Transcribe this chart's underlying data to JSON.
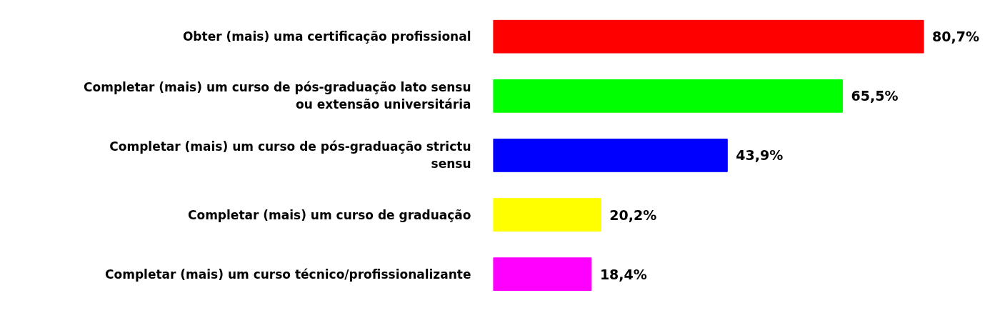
{
  "chart_data": {
    "type": "bar",
    "orientation": "horizontal",
    "categories": [
      "Obter (mais) uma certificação profissional",
      "Completar (mais) um curso de pós-graduação lato sensu ou extensão universitária",
      "Completar (mais) um curso de pós-graduação strictu sensu",
      "Completar (mais) um curso de graduação",
      "Completar (mais) um curso técnico/profissionalizante"
    ],
    "values": [
      80.7,
      65.5,
      43.9,
      20.2,
      18.4
    ],
    "colors": [
      "#ff0000",
      "#00ff00",
      "#0000ff",
      "#ffff00",
      "#ff00ff"
    ],
    "value_labels": [
      "80,7%",
      "65,5%",
      "43,9%",
      "20,2%",
      "18,4%"
    ],
    "grid": false
  }
}
